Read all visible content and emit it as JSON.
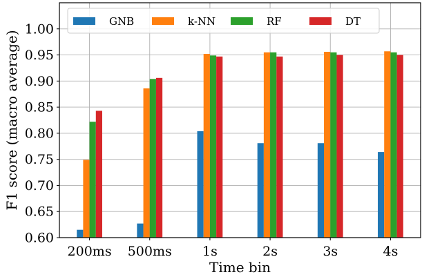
{
  "chart_data": {
    "type": "bar",
    "xlabel": "Time bin",
    "ylabel": "F1 score (macro average)",
    "categories": [
      "200ms",
      "500ms",
      "1s",
      "2s",
      "3s",
      "4s"
    ],
    "ylim": [
      0.6,
      1.05
    ],
    "yticks": [
      "0.60",
      "0.65",
      "0.70",
      "0.75",
      "0.80",
      "0.85",
      "0.90",
      "0.95",
      "1.00"
    ],
    "grid": true,
    "legend_position": "top",
    "series": [
      {
        "name": "GNB",
        "color": "#1f77b4",
        "values": [
          0.615,
          0.627,
          0.804,
          0.781,
          0.781,
          0.764
        ]
      },
      {
        "name": "k-NN",
        "color": "#ff7f0e",
        "values": [
          0.749,
          0.886,
          0.952,
          0.955,
          0.956,
          0.957
        ]
      },
      {
        "name": "RF",
        "color": "#2ca02c",
        "values": [
          0.822,
          0.904,
          0.949,
          0.955,
          0.955,
          0.955
        ]
      },
      {
        "name": "DT",
        "color": "#d62728",
        "values": [
          0.843,
          0.906,
          0.947,
          0.947,
          0.95,
          0.95
        ]
      }
    ]
  }
}
